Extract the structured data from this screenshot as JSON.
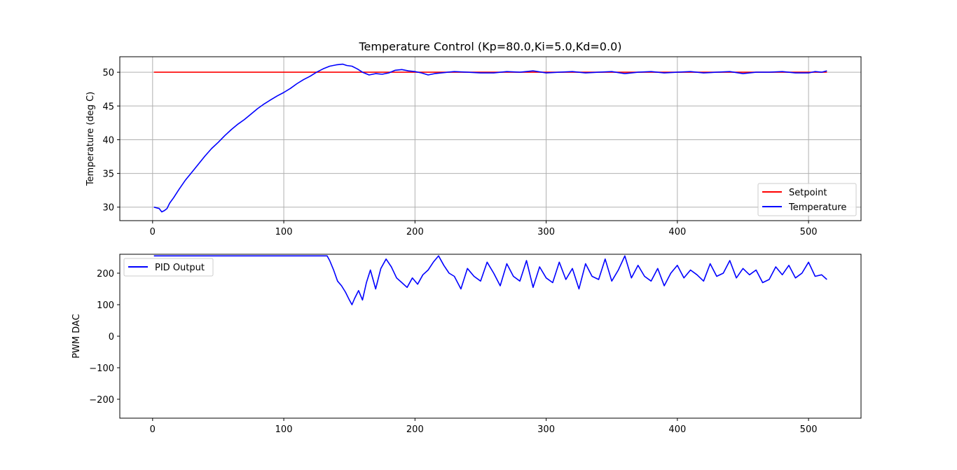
{
  "chart_data": [
    {
      "type": "line",
      "title": "Temperature Control (Kp=80.0,Ki=5.0,Kd=0.0)",
      "xlabel": "",
      "ylabel": "Temperature (deg C)",
      "xlim": [
        -25,
        540
      ],
      "ylim": [
        28,
        52.3
      ],
      "xticks": [
        0,
        100,
        200,
        300,
        400,
        500
      ],
      "yticks": [
        30,
        35,
        40,
        45,
        50
      ],
      "grid": true,
      "legend": "lower right",
      "series": [
        {
          "name": "Setpoint",
          "color": "#ff0000",
          "x": [
            1,
            514
          ],
          "y": [
            50,
            50
          ]
        },
        {
          "name": "Temperature",
          "color": "#0000ff",
          "x": [
            1,
            3,
            5,
            7,
            9,
            11,
            13,
            16,
            20,
            25,
            30,
            35,
            40,
            45,
            50,
            55,
            60,
            65,
            70,
            75,
            80,
            85,
            90,
            95,
            100,
            105,
            110,
            115,
            120,
            125,
            130,
            135,
            140,
            145,
            148,
            152,
            156,
            160,
            165,
            170,
            175,
            180,
            185,
            190,
            195,
            200,
            205,
            210,
            215,
            220,
            225,
            230,
            240,
            250,
            260,
            270,
            280,
            290,
            300,
            310,
            320,
            330,
            340,
            350,
            360,
            370,
            380,
            390,
            400,
            410,
            420,
            430,
            440,
            450,
            460,
            470,
            480,
            490,
            500,
            505,
            510,
            514
          ],
          "y": [
            30.0,
            29.9,
            29.8,
            29.3,
            29.5,
            29.8,
            30.6,
            31.4,
            32.6,
            34.0,
            35.2,
            36.4,
            37.6,
            38.7,
            39.6,
            40.6,
            41.5,
            42.3,
            43.0,
            43.8,
            44.6,
            45.3,
            45.9,
            46.5,
            47.0,
            47.6,
            48.3,
            48.9,
            49.4,
            50.0,
            50.5,
            50.9,
            51.1,
            51.2,
            51.0,
            50.9,
            50.5,
            50.0,
            49.6,
            49.8,
            49.7,
            49.9,
            50.3,
            50.4,
            50.2,
            50.1,
            49.9,
            49.6,
            49.8,
            49.9,
            50.0,
            50.1,
            50.0,
            49.9,
            49.9,
            50.1,
            50.0,
            50.2,
            49.9,
            50.0,
            50.1,
            49.9,
            50.0,
            50.1,
            49.8,
            50.0,
            50.1,
            49.9,
            50.0,
            50.1,
            49.9,
            50.0,
            50.1,
            49.8,
            50.0,
            50.0,
            50.1,
            49.9,
            49.9,
            50.1,
            50.0,
            50.2
          ]
        }
      ]
    },
    {
      "type": "line",
      "title": "",
      "xlabel": "",
      "ylabel": "PWM DAC",
      "xlim": [
        -25,
        540
      ],
      "ylim": [
        -260,
        260
      ],
      "xticks": [
        0,
        100,
        200,
        300,
        400,
        500
      ],
      "yticks": [
        -200,
        -100,
        0,
        100,
        200
      ],
      "grid": false,
      "legend": "upper left",
      "series": [
        {
          "name": "PID Output",
          "color": "#0000ff",
          "x": [
            1,
            131,
            133,
            135,
            138,
            141,
            144,
            147,
            150,
            152,
            154,
            157,
            160,
            163,
            166,
            170,
            174,
            178,
            182,
            186,
            190,
            194,
            198,
            202,
            206,
            210,
            214,
            218,
            222,
            226,
            230,
            235,
            240,
            245,
            250,
            255,
            260,
            265,
            270,
            275,
            280,
            285,
            290,
            295,
            300,
            305,
            310,
            315,
            320,
            325,
            330,
            335,
            340,
            345,
            350,
            355,
            360,
            365,
            370,
            375,
            380,
            385,
            390,
            395,
            400,
            405,
            410,
            415,
            420,
            425,
            430,
            435,
            440,
            445,
            450,
            455,
            460,
            465,
            470,
            475,
            480,
            485,
            490,
            495,
            500,
            505,
            510,
            514
          ],
          "y": [
            255,
            255,
            255,
            240,
            210,
            175,
            160,
            140,
            115,
            100,
            120,
            145,
            115,
            170,
            210,
            150,
            215,
            245,
            220,
            185,
            170,
            155,
            185,
            165,
            195,
            210,
            235,
            255,
            225,
            200,
            190,
            150,
            215,
            190,
            175,
            235,
            200,
            160,
            230,
            190,
            175,
            240,
            155,
            220,
            185,
            170,
            235,
            180,
            215,
            150,
            230,
            190,
            180,
            245,
            175,
            210,
            255,
            185,
            225,
            190,
            175,
            215,
            160,
            200,
            225,
            185,
            210,
            195,
            175,
            230,
            190,
            200,
            240,
            185,
            215,
            195,
            210,
            170,
            180,
            220,
            195,
            225,
            185,
            200,
            235,
            190,
            195,
            180
          ]
        }
      ]
    }
  ]
}
